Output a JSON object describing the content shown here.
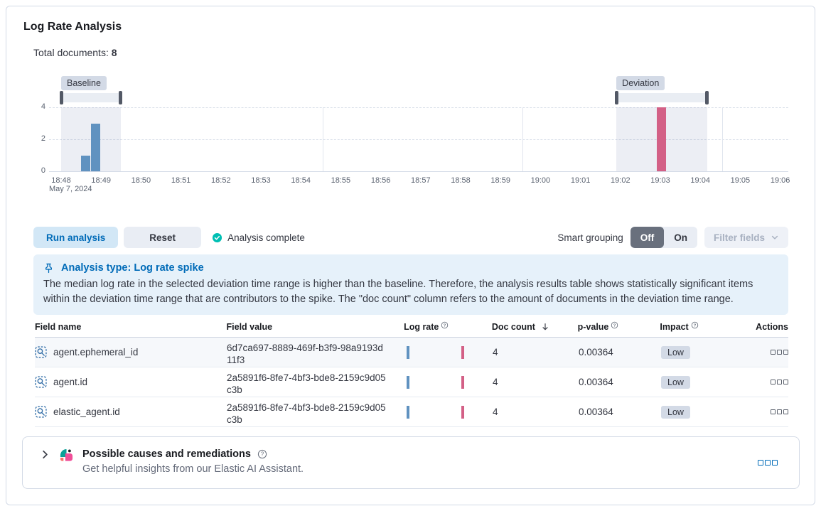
{
  "panel": {
    "title": "Log Rate Analysis"
  },
  "summary": {
    "label": "Total documents:",
    "value": "8"
  },
  "chart_data": {
    "type": "bar",
    "title": "Log rate histogram (document count over time)",
    "x_date_label": "May 7, 2024",
    "x_ticks": [
      "18:48",
      "18:49",
      "18:50",
      "18:51",
      "18:52",
      "18:53",
      "18:54",
      "18:55",
      "18:56",
      "18:57",
      "18:58",
      "18:59",
      "19:00",
      "19:01",
      "19:02",
      "19:03",
      "19:04",
      "19:05",
      "19:06"
    ],
    "x_domain_minutes": 18,
    "y_ticks": [
      0,
      2,
      4
    ],
    "y_max": 4,
    "grid": "dashed-horizontal",
    "bars": [
      {
        "time": "18:48:35",
        "minute_offset": 0.62,
        "count": 1,
        "series": "baseline"
      },
      {
        "time": "18:48:50",
        "minute_offset": 0.87,
        "count": 3,
        "series": "baseline"
      },
      {
        "time": "19:03:00",
        "minute_offset": 15.03,
        "count": 4,
        "series": "deviation"
      }
    ],
    "windows": [
      {
        "name": "baseline",
        "label": "Baseline",
        "start_minute": 0.0,
        "end_minute": 1.5
      },
      {
        "name": "deviation",
        "label": "Deviation",
        "start_minute": 13.9,
        "end_minute": 16.17
      }
    ],
    "colors": {
      "baseline": "#6092C0",
      "deviation": "#D36086"
    },
    "vertical_gridline_minutes": [
      6.55,
      11.55,
      16.55
    ],
    "bar_width_minutes": 0.25,
    "row_sparkline": {
      "bars": [
        {
          "fraction": 0.035,
          "series": "baseline"
        },
        {
          "fraction": 0.835,
          "series": "deviation"
        }
      ]
    }
  },
  "controls": {
    "run_button": "Run analysis",
    "reset_button": "Reset",
    "status": "Analysis complete",
    "smart_grouping_label": "Smart grouping",
    "smart_grouping_off": "Off",
    "smart_grouping_on": "On",
    "smart_grouping_selected": "Off",
    "filter_fields": "Filter fields"
  },
  "callout": {
    "title": "Analysis type: Log rate spike",
    "body": "The median log rate in the selected deviation time range is higher than the baseline. Therefore, the analysis results table shows statistically significant items within the deviation time range that are contributors to the spike. The \"doc count\" column refers to the amount of documents in the deviation time range."
  },
  "table": {
    "columns": {
      "field_name": "Field name",
      "field_value": "Field value",
      "log_rate": "Log rate",
      "doc_count": "Doc count",
      "p_value": "p-value",
      "impact": "Impact",
      "actions": "Actions"
    },
    "sort": {
      "column": "doc_count",
      "direction": "desc"
    },
    "rows": [
      {
        "field_name": "agent.ephemeral_id",
        "field_value": "6d7ca697-8889-469f-b3f9-98a9193d11f3",
        "doc_count": "4",
        "p_value": "0.00364",
        "impact": "Low"
      },
      {
        "field_name": "agent.id",
        "field_value": "2a5891f6-8fe7-4bf3-bde8-2159c9d05c3b",
        "doc_count": "4",
        "p_value": "0.00364",
        "impact": "Low"
      },
      {
        "field_name": "elastic_agent.id",
        "field_value": "2a5891f6-8fe7-4bf3-bde8-2159c9d05c3b",
        "doc_count": "4",
        "p_value": "0.00364",
        "impact": "Low"
      }
    ]
  },
  "ai_panel": {
    "title": "Possible causes and remediations",
    "subtitle": "Get helpful insights from our Elastic AI Assistant."
  },
  "icons": {
    "status": "check-circle-icon",
    "callout": "pin-icon",
    "filter_fields": "chevron-down-icon",
    "field_name": "field-search-icon",
    "sort": "arrow-down-icon",
    "column_help": "question-in-circle-icon",
    "actions": "boxes-horizontal-icon",
    "ai_expand": "chevron-right-icon",
    "ai_logo": "ai-assistant-icon",
    "ai_help": "question-in-circle-icon",
    "ai_actions": "boxes-horizontal-icon"
  },
  "theme": {
    "primary": "#006BB8",
    "success": "#00BFB3",
    "bar_baseline": "#6092C0",
    "bar_deviation": "#D36086",
    "callout_bg": "#E6F1FA",
    "badge_bg": "#D3DAE6",
    "border": "#D3DAE6"
  }
}
